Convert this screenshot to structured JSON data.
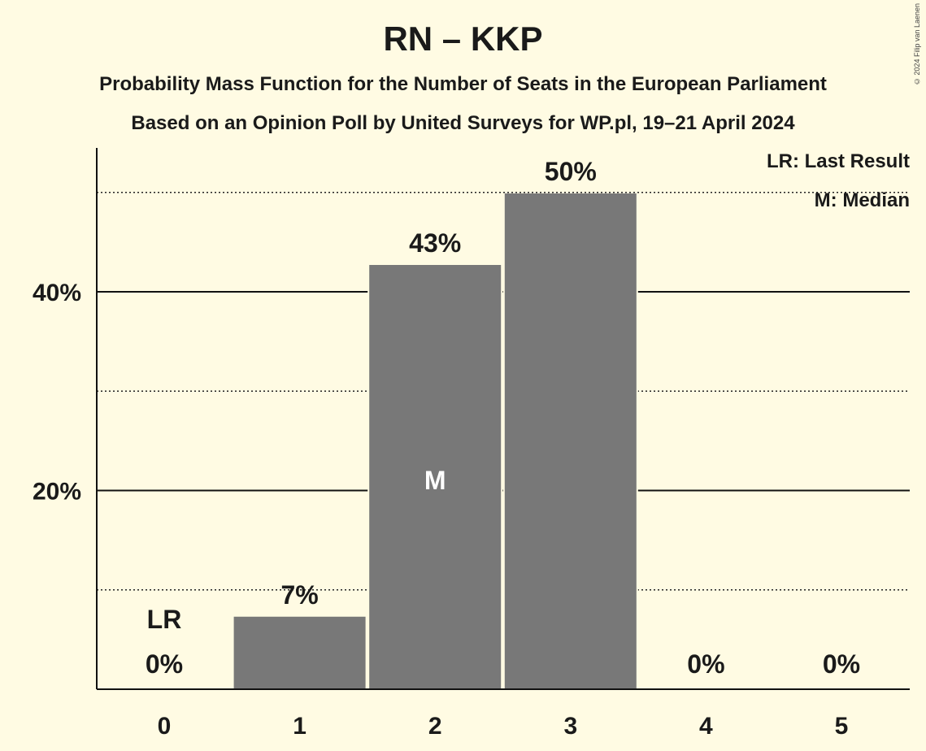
{
  "chart_data": {
    "type": "bar",
    "title": "RN – KKP",
    "subtitle": "Probability Mass Function for the Number of Seats in the European Parliament",
    "subtitle2": "Based on an Opinion Poll by United Surveys for WP.pl, 19–21 April 2024",
    "copyright": "© 2024 Filip van Laenen",
    "categories": [
      "0",
      "1",
      "2",
      "3",
      "4",
      "5"
    ],
    "values": [
      0,
      7.3,
      42.7,
      49.9,
      0,
      0
    ],
    "value_labels": [
      "0%",
      "7%",
      "43%",
      "50%",
      "0%",
      "0%"
    ],
    "ylim": [
      0,
      55
    ],
    "y_ticks": [
      {
        "value": 20,
        "label": "20%"
      },
      {
        "value": 40,
        "label": "40%"
      }
    ],
    "dotted_gridlines": [
      10,
      30,
      50
    ],
    "last_result_index": 0,
    "last_result_marker": "LR",
    "median_index": 2,
    "median_marker": "M",
    "legend": [
      "LR: Last Result",
      "M: Median"
    ],
    "legend_position": "top-right",
    "bar_color": "#787878",
    "background_color": "#fffbe3"
  }
}
